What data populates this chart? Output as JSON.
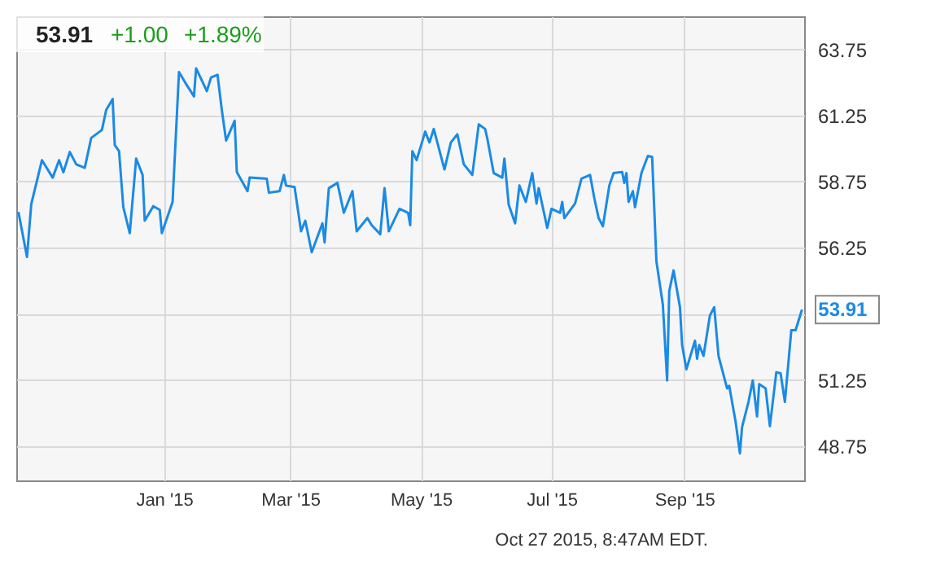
{
  "chart_data": {
    "type": "line",
    "x": [
      "2014-10-25",
      "2014-10-29",
      "2014-10-31",
      "2014-11-05",
      "2014-11-10",
      "2014-11-13",
      "2014-11-15",
      "2014-11-18",
      "2014-11-21",
      "2014-11-25",
      "2014-11-28",
      "2014-12-03",
      "2014-12-05",
      "2014-12-08",
      "2014-12-09",
      "2014-12-11",
      "2014-12-13",
      "2014-12-16",
      "2014-12-19",
      "2014-12-22",
      "2014-12-23",
      "2014-12-27",
      "2014-12-30",
      "2014-12-31",
      "2015-01-05",
      "2015-01-08",
      "2015-01-11",
      "2015-01-15",
      "2015-01-16",
      "2015-01-21",
      "2015-01-23",
      "2015-01-26",
      "2015-01-28",
      "2015-01-30",
      "2015-02-03",
      "2015-02-04",
      "2015-02-09",
      "2015-02-10",
      "2015-02-18",
      "2015-02-19",
      "2015-02-24",
      "2015-02-26",
      "2015-02-27",
      "2015-03-03",
      "2015-03-06",
      "2015-03-08",
      "2015-03-11",
      "2015-03-16",
      "2015-03-17",
      "2015-03-19",
      "2015-03-23",
      "2015-03-26",
      "2015-03-30",
      "2015-04-01",
      "2015-04-06",
      "2015-04-08",
      "2015-04-12",
      "2015-04-14",
      "2015-04-16",
      "2015-04-21",
      "2015-04-25",
      "2015-04-26",
      "2015-04-27",
      "2015-04-29",
      "2015-05-03",
      "2015-05-05",
      "2015-05-07",
      "2015-05-12",
      "2015-05-15",
      "2015-05-18",
      "2015-05-21",
      "2015-05-25",
      "2015-05-28",
      "2015-05-31",
      "2015-06-01",
      "2015-06-04",
      "2015-06-08",
      "2015-06-09",
      "2015-06-11",
      "2015-06-14",
      "2015-06-16",
      "2015-06-19",
      "2015-06-22",
      "2015-06-24",
      "2015-06-25",
      "2015-06-29",
      "2015-07-01",
      "2015-07-05",
      "2015-07-06",
      "2015-07-07",
      "2015-07-12",
      "2015-07-15",
      "2015-07-19",
      "2015-07-21",
      "2015-07-23",
      "2015-07-25",
      "2015-07-28",
      "2015-07-30",
      "2015-08-03",
      "2015-08-04",
      "2015-08-05",
      "2015-08-06",
      "2015-08-08",
      "2015-08-09",
      "2015-08-12",
      "2015-08-15",
      "2015-08-17",
      "2015-08-19",
      "2015-08-22",
      "2015-08-24",
      "2015-08-25",
      "2015-08-27",
      "2015-08-30",
      "2015-08-31",
      "2015-09-02",
      "2015-09-06",
      "2015-09-07",
      "2015-09-08",
      "2015-09-10",
      "2015-09-13",
      "2015-09-15",
      "2015-09-17",
      "2015-09-21",
      "2015-09-22",
      "2015-09-25",
      "2015-09-27",
      "2015-09-28",
      "2015-10-01",
      "2015-10-03",
      "2015-10-05",
      "2015-10-06",
      "2015-10-09",
      "2015-10-11",
      "2015-10-14",
      "2015-10-16",
      "2015-10-18",
      "2015-10-21",
      "2015-10-23",
      "2015-10-26"
    ],
    "series": [
      {
        "color": "#1a8ae6",
        "values": [
          57.6,
          55.9,
          57.9,
          59.56,
          58.9,
          59.56,
          59.1,
          59.87,
          59.4,
          59.27,
          60.4,
          60.7,
          61.46,
          61.87,
          60.13,
          59.9,
          57.78,
          56.8,
          59.62,
          59.0,
          57.27,
          57.82,
          57.68,
          56.8,
          57.98,
          62.89,
          62.48,
          61.97,
          63.03,
          62.17,
          62.69,
          62.79,
          61.46,
          60.3,
          61.05,
          59.11,
          58.39,
          58.9,
          58.86,
          58.33,
          58.39,
          59.0,
          58.6,
          58.54,
          56.87,
          57.27,
          56.08,
          57.17,
          56.45,
          58.5,
          58.7,
          57.57,
          58.39,
          56.87,
          57.37,
          57.1,
          56.76,
          58.5,
          56.87,
          57.72,
          57.57,
          57.1,
          59.9,
          59.56,
          60.64,
          60.23,
          60.74,
          59.21,
          60.23,
          60.54,
          59.41,
          59.0,
          60.91,
          60.74,
          60.38,
          59.07,
          58.9,
          59.62,
          57.88,
          57.17,
          58.6,
          57.98,
          59.07,
          57.92,
          58.5,
          57.0,
          57.72,
          57.57,
          57.98,
          57.37,
          57.92,
          58.86,
          59.0,
          58.12,
          57.37,
          57.06,
          58.6,
          59.07,
          59.11,
          58.7,
          59.07,
          57.98,
          58.39,
          57.78,
          59.07,
          59.72,
          59.68,
          55.73,
          54.1,
          51.23,
          54.61,
          55.39,
          54.0,
          52.57,
          51.65,
          52.73,
          52.05,
          52.57,
          52.16,
          53.69,
          54.0,
          52.16,
          50.93,
          51.03,
          49.66,
          48.47,
          49.46,
          50.42,
          51.23,
          49.87,
          51.09,
          50.93,
          49.5,
          51.54,
          51.5,
          50.42,
          53.13,
          53.13,
          53.91
        ]
      }
    ],
    "xlim": [
      "2014-10-24",
      "2015-10-27"
    ],
    "xticks": [
      {
        "value": "2015-01-01",
        "label": "Jan '15"
      },
      {
        "value": "2015-03-01",
        "label": "Mar '15"
      },
      {
        "value": "2015-05-01",
        "label": "May '15"
      },
      {
        "value": "2015-07-01",
        "label": "Jul '15"
      },
      {
        "value": "2015-09-01",
        "label": "Sep '15"
      }
    ],
    "ylim": [
      47.45,
      65.0
    ],
    "yticks": [
      48.75,
      51.25,
      {
        "value": 53.75,
        "label": null
      },
      56.25,
      58.75,
      61.25,
      63.75
    ],
    "grid": true,
    "marker": "none",
    "line_style": "solid",
    "annotations": [
      "53.91",
      "+1.00",
      "+1.89%",
      {
        "text": "53.91",
        "x": "2015-10-26",
        "y": 53.91
      },
      "Oct 27 2015, 8:47AM EDT."
    ]
  }
}
